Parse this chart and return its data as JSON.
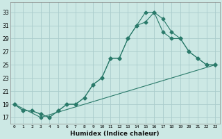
{
  "xlabel": "Humidex (Indice chaleur)",
  "ylabel": "",
  "bg_color": "#cce8e4",
  "grid_color": "#aacccc",
  "line_color": "#2a7a6a",
  "xlim": [
    -0.5,
    23.5
  ],
  "ylim": [
    16.0,
    34.5
  ],
  "xtick_labels": [
    "0",
    "1",
    "2",
    "3",
    "4",
    "5",
    "6",
    "7",
    "8",
    "9",
    "10",
    "11",
    "12",
    "13",
    "14",
    "15",
    "16",
    "17",
    "18",
    "19",
    "20",
    "21",
    "22",
    "23"
  ],
  "ytick_labels": [
    "17",
    "19",
    "21",
    "23",
    "25",
    "27",
    "29",
    "31",
    "33"
  ],
  "ytick_vals": [
    17,
    19,
    21,
    23,
    25,
    27,
    29,
    31,
    33
  ],
  "line1_x": [
    0,
    1,
    2,
    3,
    4,
    5,
    6,
    7,
    8,
    9,
    10,
    11,
    12,
    13,
    14,
    15,
    16,
    17,
    18,
    19,
    20,
    21,
    22,
    23
  ],
  "line1_y": [
    19,
    18,
    18,
    17.5,
    17,
    18,
    19,
    19,
    20,
    22,
    23,
    26,
    26,
    29,
    31,
    33,
    33,
    32,
    30,
    29,
    27,
    26,
    25,
    25
  ],
  "line2_x": [
    0,
    1,
    2,
    3,
    4,
    5,
    6,
    7,
    8,
    9,
    10,
    11,
    12,
    13,
    14,
    15,
    16,
    17,
    18,
    19,
    20,
    21,
    22,
    23
  ],
  "line2_y": [
    19,
    18,
    18,
    17.5,
    17,
    18,
    19,
    19,
    20,
    22,
    23,
    26,
    26,
    29,
    31,
    31.5,
    33,
    30,
    29,
    29,
    27,
    26,
    25,
    25
  ],
  "line3_x": [
    0,
    3,
    23
  ],
  "line3_y": [
    19,
    17,
    25
  ]
}
